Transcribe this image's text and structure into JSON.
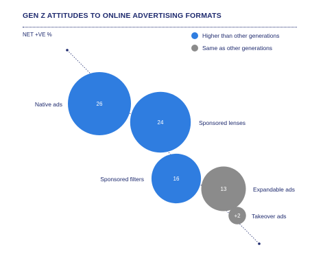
{
  "chart_data": {
    "type": "bubble",
    "title": "GEN Z ATTITUDES TO ONLINE ADVERTISING FORMATS",
    "ylabel": "NET +VE %",
    "series": [
      {
        "name": "Higher than other generations",
        "color": "#2f7de0"
      },
      {
        "name": "Same as other generations",
        "color": "#8b8b8b"
      }
    ],
    "points": [
      {
        "label": "Native ads",
        "value": 26,
        "display": "26",
        "series": 0
      },
      {
        "label": "Sponsored lenses",
        "value": 24,
        "display": "24",
        "series": 0
      },
      {
        "label": "Sponsored filters",
        "value": 16,
        "display": "16",
        "series": 0
      },
      {
        "label": "Expandable ads",
        "value": 13,
        "display": "13",
        "series": 1
      },
      {
        "label": "Takeover ads",
        "value": 2,
        "display": "+2",
        "series": 1
      }
    ]
  }
}
